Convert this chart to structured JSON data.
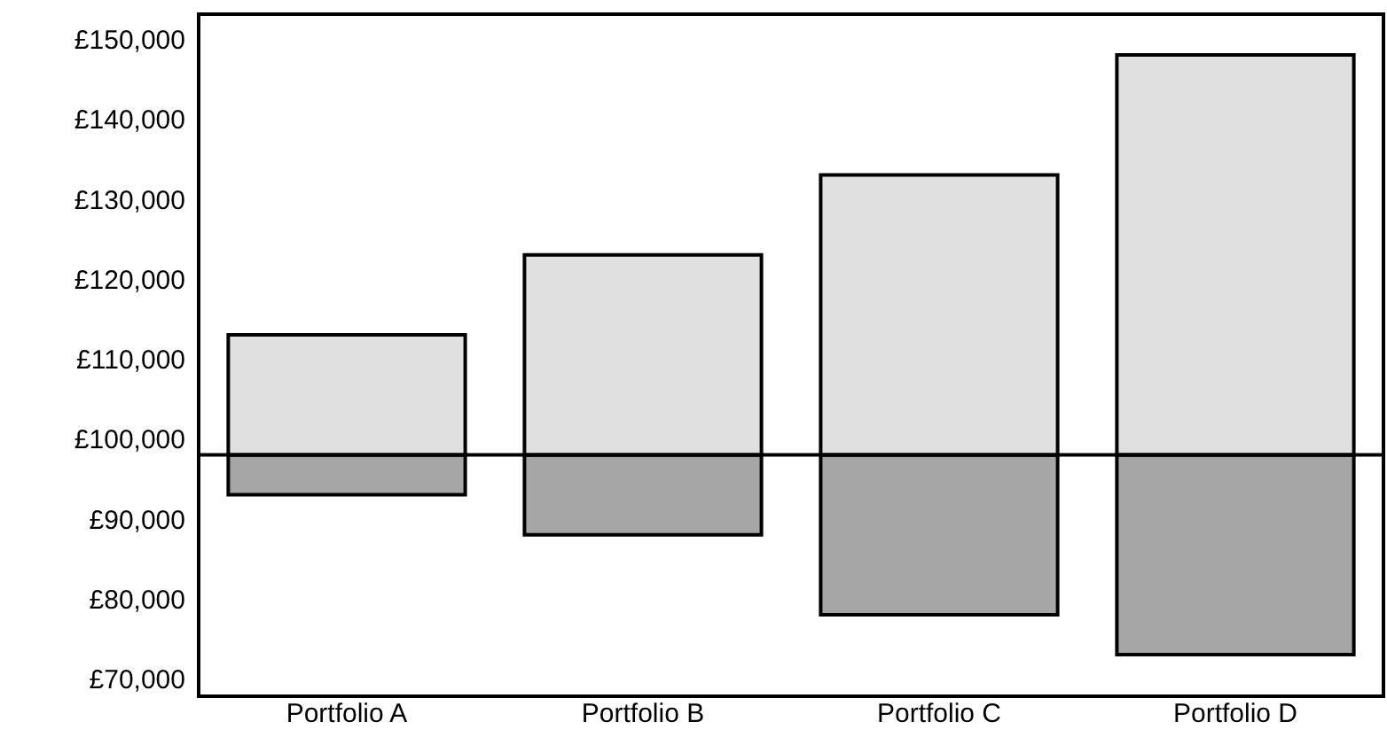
{
  "chart_data": {
    "type": "bar",
    "categories": [
      "Portfolio A",
      "Portfolio B",
      "Portfolio C",
      "Portfolio D"
    ],
    "series": [
      {
        "color": "#a6a6a6",
        "base": [
          93000,
          88000,
          78000,
          73000
        ],
        "values": [
          5000,
          10000,
          20000,
          25000
        ]
      },
      {
        "color": "#e0e0e0",
        "base": [
          98000,
          98000,
          98000,
          98000
        ],
        "values": [
          15000,
          25000,
          35000,
          50000
        ]
      }
    ],
    "ylim": [
      67800,
      153100
    ],
    "yticks": [
      {
        "value": 70000,
        "label": "£70,000"
      },
      {
        "value": 80000,
        "label": "£80,000"
      },
      {
        "value": 90000,
        "label": "£90,000"
      },
      {
        "value": 100000,
        "label": "£100,000"
      },
      {
        "value": 110000,
        "label": "£110,000"
      },
      {
        "value": 120000,
        "label": "£120,000"
      },
      {
        "value": 130000,
        "label": "£130,000"
      },
      {
        "value": 140000,
        "label": "£140,000"
      },
      {
        "value": 150000,
        "label": "£150,000"
      }
    ],
    "ref_lines": [
      {
        "axis": "y",
        "value": 98000,
        "color": "#000000"
      }
    ],
    "grid": false
  }
}
